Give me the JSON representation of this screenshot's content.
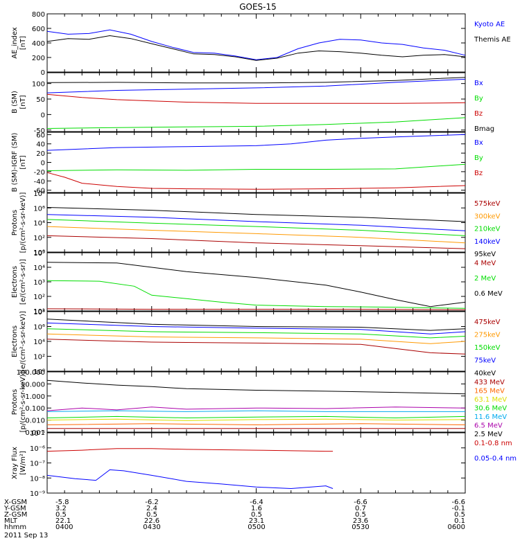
{
  "title": "GOES-15",
  "footer": {
    "row_labels": [
      "X-GSM",
      "Y-GSM",
      "Z-GSM",
      "MLT",
      "hhmm"
    ],
    "date": "2011 Sep 13",
    "columns": [
      [
        "-5.8",
        "3.2",
        "0.5",
        "22.1",
        "0400"
      ],
      [
        "-6.2",
        "2.4",
        "0.5",
        "22.6",
        "0430"
      ],
      [
        "-6.4",
        "1.6",
        "0.5",
        "23.1",
        "0500"
      ],
      [
        "-6.6",
        "0.7",
        "0.5",
        "23.6",
        "0530"
      ],
      [
        "-6.6",
        "-0.1",
        "0.5",
        "0.1",
        "0600"
      ]
    ]
  },
  "colors": {
    "black": "#000000",
    "blue": "#0000ff",
    "green": "#00dd00",
    "red": "#cc0000",
    "darkred": "#aa0000",
    "orange": "#ff9900",
    "yellow": "#dddd00",
    "cyan": "#00aaee",
    "purple": "#aa00aa",
    "brown": "#ff6600"
  },
  "chart_data": [
    {
      "type": "line",
      "id": "ae",
      "ylabel": [
        "AE_index",
        "[nT]"
      ],
      "yscale": "linear",
      "ylim": [
        0,
        800
      ],
      "yticks": [
        "0",
        "200",
        "400",
        "600",
        "800"
      ],
      "xlim": [
        0,
        120
      ],
      "legend": [
        {
          "text": "Kyoto AE",
          "color": "blue"
        },
        {
          "text": "Themis AE",
          "color": "black"
        }
      ],
      "series": [
        {
          "name": "Kyoto AE",
          "color": "blue",
          "x": [
            0,
            6,
            12,
            18,
            24,
            30,
            36,
            42,
            48,
            54,
            60,
            66,
            72,
            78,
            84,
            90,
            96,
            102,
            108,
            114,
            120
          ],
          "y": [
            560,
            520,
            530,
            580,
            520,
            420,
            340,
            270,
            260,
            220,
            170,
            200,
            320,
            400,
            450,
            440,
            400,
            380,
            330,
            300,
            230
          ]
        },
        {
          "name": "Themis AE",
          "color": "black",
          "x": [
            0,
            6,
            12,
            18,
            24,
            30,
            36,
            42,
            48,
            54,
            60,
            66,
            72,
            78,
            84,
            90,
            96,
            102,
            108,
            114,
            120
          ],
          "y": [
            420,
            460,
            450,
            500,
            460,
            390,
            320,
            250,
            240,
            210,
            160,
            190,
            260,
            290,
            280,
            260,
            230,
            210,
            230,
            240,
            210
          ]
        }
      ]
    },
    {
      "type": "line",
      "id": "bsm",
      "ylabel": [
        "B (SM)",
        "[nT]"
      ],
      "yscale": "linear",
      "ylim": [
        -55,
        135
      ],
      "yticks": [
        "-50",
        "0",
        "50",
        "100"
      ],
      "xlim": [
        0,
        120
      ],
      "legend": [
        {
          "text": "Bx",
          "color": "blue"
        },
        {
          "text": "By",
          "color": "green"
        },
        {
          "text": "Bz",
          "color": "red"
        },
        {
          "text": "Bmag",
          "color": "black"
        }
      ],
      "series": [
        {
          "name": "Bx",
          "color": "blue",
          "x": [
            0,
            20,
            40,
            60,
            80,
            100,
            120
          ],
          "y": [
            70,
            78,
            82,
            86,
            92,
            104,
            114
          ]
        },
        {
          "name": "By",
          "color": "green",
          "x": [
            0,
            20,
            40,
            60,
            80,
            100,
            120
          ],
          "y": [
            -45,
            -42,
            -40,
            -38,
            -32,
            -24,
            -10
          ]
        },
        {
          "name": "Bz",
          "color": "red",
          "x": [
            0,
            10,
            20,
            30,
            40,
            60,
            80,
            100,
            120
          ],
          "y": [
            65,
            55,
            48,
            44,
            40,
            36,
            36,
            36,
            38
          ]
        },
        {
          "name": "Bmag",
          "color": "black",
          "x": [
            0,
            20,
            40,
            60,
            80,
            100,
            120
          ],
          "y": [
            103,
            104,
            102,
            102,
            104,
            110,
            120
          ]
        }
      ]
    },
    {
      "type": "line",
      "id": "bdiff",
      "ylabel": [
        "B (SM)-IGRF (SM)",
        "[nT]"
      ],
      "yscale": "linear",
      "ylim": [
        -65,
        65
      ],
      "yticks": [
        "-60",
        "-40",
        "-20",
        "0",
        "20",
        "40",
        "60"
      ],
      "xlim": [
        0,
        120
      ],
      "legend": [
        {
          "text": "Bx",
          "color": "blue"
        },
        {
          "text": "By",
          "color": "green"
        },
        {
          "text": "Bz",
          "color": "red"
        }
      ],
      "series": [
        {
          "name": "Bx",
          "color": "blue",
          "x": [
            0,
            20,
            40,
            60,
            70,
            80,
            90,
            100,
            120
          ],
          "y": [
            26,
            32,
            34,
            36,
            40,
            48,
            52,
            55,
            60
          ]
        },
        {
          "name": "By",
          "color": "green",
          "x": [
            0,
            20,
            40,
            60,
            80,
            100,
            120
          ],
          "y": [
            -18,
            -16,
            -17,
            -15,
            -15,
            -14,
            -4
          ]
        },
        {
          "name": "Bz",
          "color": "red",
          "x": [
            0,
            5,
            10,
            20,
            30,
            40,
            60,
            80,
            100,
            120
          ],
          "y": [
            -22,
            -32,
            -45,
            -52,
            -56,
            -57,
            -58,
            -57,
            -55,
            -50
          ]
        }
      ]
    },
    {
      "type": "line",
      "id": "protons_lo",
      "ylabel": [
        "Protons",
        "[p/(cm²-s-sr-keV)]"
      ],
      "yscale": "log",
      "ylim": [
        0.5,
        100000000
      ],
      "yticks": [
        "10⁰",
        "10²",
        "10⁴",
        "10⁶",
        "10⁸"
      ],
      "xlim": [
        0,
        120
      ],
      "legend": [
        {
          "text": "575keV",
          "color": "darkred"
        },
        {
          "text": "300keV",
          "color": "orange"
        },
        {
          "text": "210keV",
          "color": "green"
        },
        {
          "text": "140keV",
          "color": "blue"
        },
        {
          "text": "95keV",
          "color": "black"
        }
      ],
      "series": [
        {
          "name": "95keV",
          "color": "black",
          "x": [
            0,
            30,
            60,
            90,
            120
          ],
          "y": [
            1000000,
            400000,
            100000,
            40000,
            10000
          ]
        },
        {
          "name": "140keV",
          "color": "blue",
          "x": [
            0,
            30,
            60,
            90,
            120
          ],
          "y": [
            100000,
            40000,
            10000,
            3000,
            500
          ]
        },
        {
          "name": "210keV",
          "color": "green",
          "x": [
            0,
            30,
            60,
            90,
            120
          ],
          "y": [
            20000,
            6000,
            2000,
            600,
            100
          ]
        },
        {
          "name": "300keV",
          "color": "orange",
          "x": [
            0,
            30,
            60,
            90,
            120
          ],
          "y": [
            2000,
            600,
            200,
            60,
            10
          ]
        },
        {
          "name": "575keV",
          "color": "darkred",
          "x": [
            0,
            30,
            60,
            90,
            120
          ],
          "y": [
            100,
            40,
            10,
            4,
            1.5
          ]
        }
      ]
    },
    {
      "type": "line",
      "id": "electrons_hi",
      "ylabel": [
        "Electrons",
        "[e/(cm²-s-sr)]"
      ],
      "yscale": "log",
      "ylim": [
        10,
        100000
      ],
      "yticks": [
        "10¹",
        "10²",
        "10³",
        "10⁴",
        "10⁵"
      ],
      "xlim": [
        0,
        120
      ],
      "legend": [
        {
          "text": "4 MeV",
          "color": "darkred"
        },
        {
          "text": "2 MeV",
          "color": "green"
        },
        {
          "text": "0.6 MeV",
          "color": "black"
        }
      ],
      "series": [
        {
          "name": "0.6 MeV",
          "color": "black",
          "x": [
            0,
            20,
            30,
            40,
            60,
            80,
            90,
            100,
            110,
            120
          ],
          "y": [
            22000,
            20000,
            10000,
            5000,
            2000,
            600,
            200,
            60,
            20,
            40
          ]
        },
        {
          "name": "2 MeV",
          "color": "green",
          "x": [
            0,
            15,
            25,
            30,
            40,
            50,
            60,
            80,
            100,
            120
          ],
          "y": [
            1200,
            1100,
            500,
            120,
            70,
            40,
            25,
            20,
            18,
            15
          ]
        },
        {
          "name": "4 MeV",
          "color": "darkred",
          "x": [
            0,
            30,
            60,
            90,
            120
          ],
          "y": [
            14,
            13,
            13,
            13,
            12
          ]
        }
      ]
    },
    {
      "type": "line",
      "id": "electrons_lo",
      "ylabel": [
        "Electrons",
        "[e/(cm²-s-sr-keV)]"
      ],
      "yscale": "log",
      "ylim": [
        1,
        100000000
      ],
      "yticks": [
        "10⁰",
        "10²",
        "10⁴",
        "10⁶",
        "10⁸"
      ],
      "xlim": [
        0,
        120
      ],
      "legend": [
        {
          "text": "475keV",
          "color": "darkred"
        },
        {
          "text": "275keV",
          "color": "orange"
        },
        {
          "text": "150keV",
          "color": "green"
        },
        {
          "text": "75keV",
          "color": "blue"
        },
        {
          "text": "40keV",
          "color": "black"
        }
      ],
      "series": [
        {
          "name": "40keV",
          "color": "black",
          "x": [
            0,
            30,
            60,
            90,
            110,
            120
          ],
          "y": [
            10000000,
            2000000,
            1000000,
            800000,
            300000,
            500000
          ]
        },
        {
          "name": "75keV",
          "color": "blue",
          "x": [
            0,
            30,
            60,
            90,
            110,
            120
          ],
          "y": [
            3000000,
            1000000,
            600000,
            400000,
            100000,
            200000
          ]
        },
        {
          "name": "150keV",
          "color": "green",
          "x": [
            0,
            30,
            60,
            90,
            110,
            120
          ],
          "y": [
            500000,
            200000,
            150000,
            100000,
            30000,
            50000
          ]
        },
        {
          "name": "275keV",
          "color": "orange",
          "x": [
            0,
            30,
            60,
            90,
            110,
            120
          ],
          "y": [
            100000,
            40000,
            30000,
            20000,
            5000,
            10000
          ]
        },
        {
          "name": "475keV",
          "color": "darkred",
          "x": [
            0,
            30,
            60,
            90,
            110,
            120
          ],
          "y": [
            20000,
            8000,
            6000,
            4000,
            300,
            200
          ]
        }
      ]
    },
    {
      "type": "line",
      "id": "protons_hi",
      "ylabel": [
        "Protons",
        "[p/(cm²-s-sr-keV)]"
      ],
      "yscale": "log",
      "ylim": [
        0.001,
        100
      ],
      "yticks": [
        "0.001",
        "0.010",
        "0.100",
        "1.000",
        "10.000",
        "100.000"
      ],
      "xlim": [
        0,
        120
      ],
      "legend": [
        {
          "text": "433 MeV",
          "color": "darkred"
        },
        {
          "text": "165 MeV",
          "color": "brown"
        },
        {
          "text": "63.1 MeV",
          "color": "yellow"
        },
        {
          "text": "30.6 MeV",
          "color": "green"
        },
        {
          "text": "11.6 MeV",
          "color": "cyan"
        },
        {
          "text": "6.5 MeV",
          "color": "purple"
        },
        {
          "text": "2.5 MeV",
          "color": "black"
        }
      ],
      "series": [
        {
          "name": "2.5 MeV",
          "color": "black",
          "x": [
            0,
            10,
            20,
            30,
            40,
            60,
            80,
            100,
            120
          ],
          "y": [
            20,
            12,
            8,
            6,
            4,
            3,
            2.5,
            2,
            1.5
          ]
        },
        {
          "name": "6.5 MeV",
          "color": "purple",
          "x": [
            0,
            10,
            20,
            30,
            40,
            60,
            80,
            100,
            120
          ],
          "y": [
            0.06,
            0.1,
            0.07,
            0.12,
            0.08,
            0.1,
            0.09,
            0.12,
            0.1
          ]
        },
        {
          "name": "11.6 MeV",
          "color": "cyan",
          "x": [
            0,
            20,
            40,
            60,
            80,
            100,
            120
          ],
          "y": [
            0.05,
            0.06,
            0.05,
            0.06,
            0.05,
            0.05,
            0.05
          ]
        },
        {
          "name": "30.6 MeV",
          "color": "green",
          "x": [
            0,
            20,
            40,
            60,
            80,
            100,
            120
          ],
          "y": [
            0.015,
            0.02,
            0.015,
            0.018,
            0.02,
            0.015,
            0.02
          ]
        },
        {
          "name": "63.1 MeV",
          "color": "yellow",
          "x": [
            0,
            20,
            40,
            60,
            80,
            100,
            120
          ],
          "y": [
            0.01,
            0.012,
            0.009,
            0.011,
            0.012,
            0.01,
            0.011
          ]
        },
        {
          "name": "165 MeV",
          "color": "brown",
          "x": [
            0,
            30,
            60,
            90,
            120
          ],
          "y": [
            0.004,
            0.005,
            0.004,
            0.005,
            0.004
          ]
        },
        {
          "name": "433 MeV",
          "color": "darkred",
          "x": [
            0,
            30,
            60,
            90,
            120
          ],
          "y": [
            0.002,
            0.002,
            0.002,
            0.002,
            0.002
          ]
        }
      ]
    },
    {
      "type": "line",
      "id": "xray",
      "ylabel": [
        "Xray Flux",
        "[W/m²]"
      ],
      "yscale": "log",
      "ylim": [
        1e-09,
        1e-05
      ],
      "yticks": [
        "10⁻⁹",
        "10⁻⁸",
        "10⁻⁷",
        "10⁻⁶",
        "10⁻⁵"
      ],
      "xlim": [
        0,
        120
      ],
      "legend": [
        {
          "text": "0.1-0.8 nm",
          "color": "red"
        },
        {
          "text": "0.05-0.4 nm",
          "color": "blue"
        }
      ],
      "series": [
        {
          "name": "0.1-0.8 nm",
          "color": "red",
          "x": [
            0,
            10,
            20,
            30,
            40,
            60,
            80,
            82
          ],
          "y": [
            6e-07,
            7e-07,
            9e-07,
            9e-07,
            8e-07,
            7e-07,
            6e-07,
            6e-07
          ]
        },
        {
          "name": "0.05-0.4 nm",
          "color": "blue",
          "x": [
            0,
            8,
            14,
            18,
            22,
            30,
            40,
            50,
            60,
            70,
            80,
            82
          ],
          "y": [
            1.5e-08,
            9e-09,
            7e-09,
            3.5e-08,
            3e-08,
            1.5e-08,
            6e-09,
            4e-09,
            2.5e-09,
            2e-09,
            3e-09,
            2e-09
          ]
        }
      ]
    }
  ]
}
